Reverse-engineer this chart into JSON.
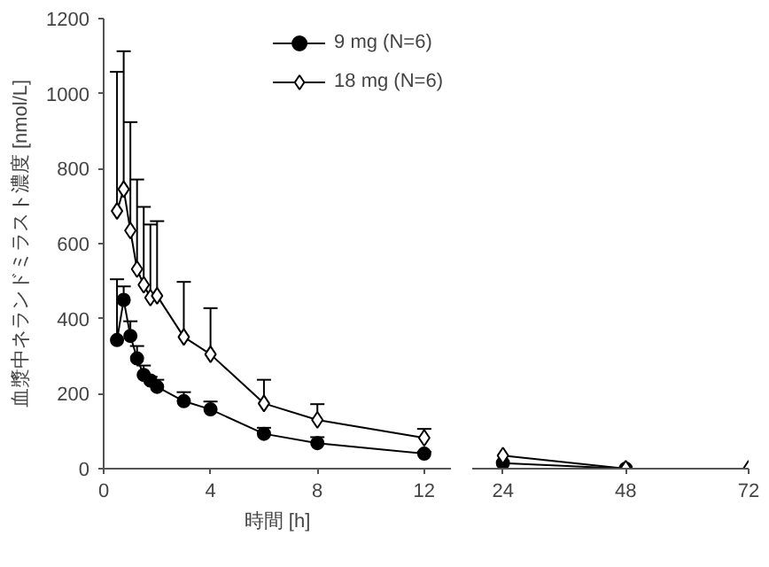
{
  "chart_data": [
    {
      "type": "line",
      "ylabel": "血漿中ネランドミラスト濃度 [nmol/L]",
      "xlabel": "時間 [h]",
      "xlim": [
        0,
        13
      ],
      "xticks": [
        0,
        4,
        8,
        12
      ],
      "ylim": [
        0,
        1200
      ],
      "yticks": [
        0,
        200,
        400,
        600,
        800,
        1000,
        1200
      ],
      "grid": false,
      "legend": "top right",
      "series": [
        {
          "name": "9 mg (N=6)",
          "color": "#000000",
          "marker": "circle",
          "x": [
            0.5,
            0.75,
            1,
            1.25,
            1.5,
            1.75,
            2,
            3,
            4,
            6,
            8,
            12
          ],
          "values": [
            343,
            450,
            354,
            294,
            250,
            235,
            218,
            180,
            158,
            93,
            68,
            40
          ],
          "errors": [
            [
              343,
              505
            ],
            [
              450,
              486
            ],
            [
              354,
              393
            ],
            [
              294,
              327
            ],
            [
              250,
              275
            ],
            [
              235,
              245
            ],
            [
              218,
              237
            ],
            [
              180,
              204
            ],
            [
              158,
              179
            ],
            [
              93,
              109
            ],
            [
              68,
              84
            ],
            [
              40,
              45
            ]
          ]
        },
        {
          "name": "18 mg (N=6)",
          "color": "#000000",
          "marker": "diamond",
          "x": [
            0.5,
            0.75,
            1,
            1.25,
            1.5,
            1.75,
            2,
            3,
            4,
            6,
            8,
            12
          ],
          "values": [
            687,
            745,
            635,
            532,
            490,
            456,
            461,
            351,
            305,
            174,
            130,
            82
          ],
          "errors": [
            [
              687,
              1058
            ],
            [
              745,
              1113
            ],
            [
              635,
              924
            ],
            [
              532,
              771
            ],
            [
              490,
              698
            ],
            [
              456,
              651
            ],
            [
              461,
              660
            ],
            [
              351,
              498
            ],
            [
              305,
              428
            ],
            [
              174,
              237
            ],
            [
              130,
              172
            ],
            [
              82,
              106
            ]
          ]
        }
      ]
    },
    {
      "type": "line",
      "xlim": [
        18,
        72
      ],
      "xticks": [
        24,
        48,
        72
      ],
      "ylim": [
        0,
        1200
      ],
      "yticks": [
        0,
        200,
        400,
        600,
        800,
        1000,
        1200
      ],
      "tick_labels": "x",
      "grid": false,
      "series": [
        {
          "color": "#000000",
          "marker": "circle",
          "x": [
            24,
            48
          ],
          "values": [
            15,
            0
          ]
        },
        {
          "color": "#000000",
          "marker": "diamond",
          "x": [
            24,
            48,
            72
          ],
          "values": [
            35,
            0,
            0
          ]
        }
      ]
    }
  ]
}
